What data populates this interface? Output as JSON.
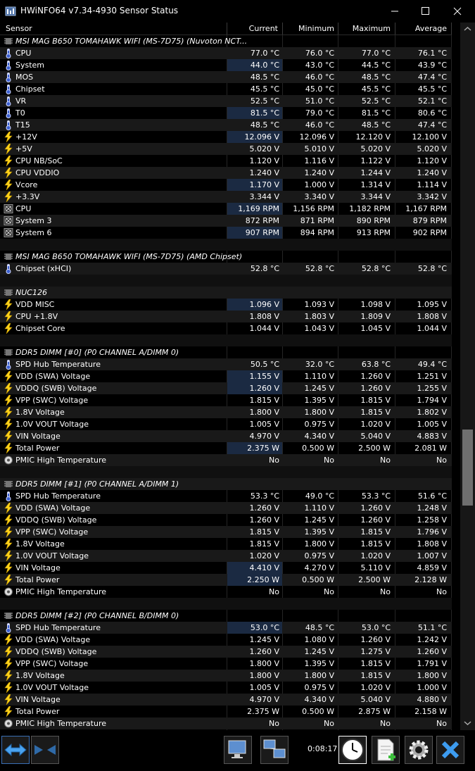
{
  "window": {
    "title": "HWiNFO64 v7.34-4930 Sensor Status"
  },
  "header": {
    "sensor": "Sensor",
    "current": "Current",
    "minimum": "Minimum",
    "maximum": "Maximum",
    "average": "Average"
  },
  "footer": {
    "timer": "0:08:17"
  },
  "rows": [
    {
      "type": "group",
      "name": "MSI MAG B650 TOMAHAWK WIFI (MS-7D75) (Nuvoton NCT..."
    },
    {
      "type": "s",
      "icon": "temp",
      "name": "CPU",
      "cur": "77.0 °C",
      "min": "76.0 °C",
      "max": "77.0 °C",
      "avg": "76.1 °C"
    },
    {
      "type": "s",
      "icon": "temp",
      "name": "System",
      "cur": "44.0 °C",
      "min": "43.0 °C",
      "max": "44.5 °C",
      "avg": "43.9 °C",
      "hl": true
    },
    {
      "type": "s",
      "icon": "temp",
      "name": "MOS",
      "cur": "48.5 °C",
      "min": "46.0 °C",
      "max": "48.5 °C",
      "avg": "47.4 °C"
    },
    {
      "type": "s",
      "icon": "temp",
      "name": "Chipset",
      "cur": "45.5 °C",
      "min": "45.0 °C",
      "max": "45.5 °C",
      "avg": "45.5 °C"
    },
    {
      "type": "s",
      "icon": "temp",
      "name": "VR",
      "cur": "52.5 °C",
      "min": "51.0 °C",
      "max": "52.5 °C",
      "avg": "52.1 °C"
    },
    {
      "type": "s",
      "icon": "temp",
      "name": "T0",
      "cur": "81.5 °C",
      "min": "79.0 °C",
      "max": "81.5 °C",
      "avg": "80.6 °C",
      "hl": true
    },
    {
      "type": "s",
      "icon": "temp",
      "name": "T15",
      "cur": "48.5 °C",
      "min": "46.0 °C",
      "max": "48.5 °C",
      "avg": "47.4 °C"
    },
    {
      "type": "s",
      "icon": "volt",
      "name": "+12V",
      "cur": "12.096 V",
      "min": "12.096 V",
      "max": "12.120 V",
      "avg": "12.100 V",
      "hl": true
    },
    {
      "type": "s",
      "icon": "volt",
      "name": "+5V",
      "cur": "5.020 V",
      "min": "5.010 V",
      "max": "5.020 V",
      "avg": "5.020 V"
    },
    {
      "type": "s",
      "icon": "volt",
      "name": "CPU NB/SoC",
      "cur": "1.120 V",
      "min": "1.116 V",
      "max": "1.122 V",
      "avg": "1.120 V"
    },
    {
      "type": "s",
      "icon": "volt",
      "name": "CPU VDDIO",
      "cur": "1.240 V",
      "min": "1.240 V",
      "max": "1.244 V",
      "avg": "1.240 V"
    },
    {
      "type": "s",
      "icon": "volt",
      "name": "Vcore",
      "cur": "1.170 V",
      "min": "1.000 V",
      "max": "1.314 V",
      "avg": "1.114 V",
      "hl": true
    },
    {
      "type": "s",
      "icon": "volt",
      "name": "+3.3V",
      "cur": "3.344 V",
      "min": "3.340 V",
      "max": "3.344 V",
      "avg": "3.342 V"
    },
    {
      "type": "s",
      "icon": "fan",
      "name": "CPU",
      "cur": "1,169 RPM",
      "min": "1,156 RPM",
      "max": "1,182 RPM",
      "avg": "1,167 RPM",
      "hl": true
    },
    {
      "type": "s",
      "icon": "fan",
      "name": "System 3",
      "cur": "872 RPM",
      "min": "871 RPM",
      "max": "890 RPM",
      "avg": "879 RPM"
    },
    {
      "type": "s",
      "icon": "fan",
      "name": "System 6",
      "cur": "907 RPM",
      "min": "894 RPM",
      "max": "913 RPM",
      "avg": "902 RPM",
      "hl": true
    },
    {
      "type": "blank"
    },
    {
      "type": "group",
      "name": "MSI MAG B650 TOMAHAWK WIFI (MS-7D75) (AMD Chipset)"
    },
    {
      "type": "s",
      "icon": "temp",
      "name": "Chipset (xHCI)",
      "cur": "52.8 °C",
      "min": "52.8 °C",
      "max": "52.8 °C",
      "avg": "52.8 °C"
    },
    {
      "type": "blank"
    },
    {
      "type": "group",
      "name": "NUC126"
    },
    {
      "type": "s",
      "icon": "volt",
      "name": "VDD MISC",
      "cur": "1.096 V",
      "min": "1.093 V",
      "max": "1.098 V",
      "avg": "1.095 V",
      "hl": true
    },
    {
      "type": "s",
      "icon": "volt",
      "name": "CPU +1.8V",
      "cur": "1.808 V",
      "min": "1.803 V",
      "max": "1.809 V",
      "avg": "1.808 V"
    },
    {
      "type": "s",
      "icon": "volt",
      "name": "Chipset Core",
      "cur": "1.044 V",
      "min": "1.043 V",
      "max": "1.045 V",
      "avg": "1.044 V"
    },
    {
      "type": "blank"
    },
    {
      "type": "group",
      "name": "DDR5 DIMM [#0] (P0 CHANNEL A/DIMM 0)"
    },
    {
      "type": "s",
      "icon": "temp",
      "name": "SPD Hub Temperature",
      "cur": "50.5 °C",
      "min": "32.0 °C",
      "max": "63.8 °C",
      "avg": "49.4 °C"
    },
    {
      "type": "s",
      "icon": "volt",
      "name": "VDD (SWA) Voltage",
      "cur": "1.155 V",
      "min": "1.110 V",
      "max": "1.260 V",
      "avg": "1.251 V",
      "hl": true
    },
    {
      "type": "s",
      "icon": "volt",
      "name": "VDDQ (SWB) Voltage",
      "cur": "1.260 V",
      "min": "1.245 V",
      "max": "1.260 V",
      "avg": "1.255 V",
      "hl": true
    },
    {
      "type": "s",
      "icon": "volt",
      "name": "VPP (SWC) Voltage",
      "cur": "1.815 V",
      "min": "1.395 V",
      "max": "1.815 V",
      "avg": "1.794 V"
    },
    {
      "type": "s",
      "icon": "volt",
      "name": "1.8V Voltage",
      "cur": "1.800 V",
      "min": "1.800 V",
      "max": "1.815 V",
      "avg": "1.802 V"
    },
    {
      "type": "s",
      "icon": "volt",
      "name": "1.0V VOUT Voltage",
      "cur": "1.005 V",
      "min": "0.975 V",
      "max": "1.020 V",
      "avg": "1.005 V"
    },
    {
      "type": "s",
      "icon": "volt",
      "name": "VIN Voltage",
      "cur": "4.970 V",
      "min": "4.340 V",
      "max": "5.040 V",
      "avg": "4.883 V"
    },
    {
      "type": "s",
      "icon": "volt",
      "name": "Total Power",
      "cur": "2.375 W",
      "min": "0.500 W",
      "max": "2.500 W",
      "avg": "2.081 W",
      "hl": true
    },
    {
      "type": "s",
      "icon": "yesno",
      "name": "PMIC High Temperature",
      "cur": "No",
      "min": "No",
      "max": "No",
      "avg": "No"
    },
    {
      "type": "blank"
    },
    {
      "type": "group",
      "name": "DDR5 DIMM [#1] (P0 CHANNEL A/DIMM 1)"
    },
    {
      "type": "s",
      "icon": "temp",
      "name": "SPD Hub Temperature",
      "cur": "53.3 °C",
      "min": "49.0 °C",
      "max": "53.3 °C",
      "avg": "51.6 °C"
    },
    {
      "type": "s",
      "icon": "volt",
      "name": "VDD (SWA) Voltage",
      "cur": "1.260 V",
      "min": "1.110 V",
      "max": "1.260 V",
      "avg": "1.248 V"
    },
    {
      "type": "s",
      "icon": "volt",
      "name": "VDDQ (SWB) Voltage",
      "cur": "1.260 V",
      "min": "1.245 V",
      "max": "1.260 V",
      "avg": "1.258 V"
    },
    {
      "type": "s",
      "icon": "volt",
      "name": "VPP (SWC) Voltage",
      "cur": "1.815 V",
      "min": "1.395 V",
      "max": "1.815 V",
      "avg": "1.796 V"
    },
    {
      "type": "s",
      "icon": "volt",
      "name": "1.8V Voltage",
      "cur": "1.815 V",
      "min": "1.800 V",
      "max": "1.815 V",
      "avg": "1.808 V"
    },
    {
      "type": "s",
      "icon": "volt",
      "name": "1.0V VOUT Voltage",
      "cur": "1.020 V",
      "min": "0.975 V",
      "max": "1.020 V",
      "avg": "1.007 V"
    },
    {
      "type": "s",
      "icon": "volt",
      "name": "VIN Voltage",
      "cur": "4.410 V",
      "min": "4.270 V",
      "max": "5.110 V",
      "avg": "4.859 V",
      "hl": true
    },
    {
      "type": "s",
      "icon": "volt",
      "name": "Total Power",
      "cur": "2.250 W",
      "min": "0.500 W",
      "max": "2.500 W",
      "avg": "2.128 W",
      "hl": true
    },
    {
      "type": "s",
      "icon": "yesno",
      "name": "PMIC High Temperature",
      "cur": "No",
      "min": "No",
      "max": "No",
      "avg": "No"
    },
    {
      "type": "blank"
    },
    {
      "type": "group",
      "name": "DDR5 DIMM [#2] (P0 CHANNEL B/DIMM 0)"
    },
    {
      "type": "s",
      "icon": "temp",
      "name": "SPD Hub Temperature",
      "cur": "53.0 °C",
      "min": "48.5 °C",
      "max": "53.0 °C",
      "avg": "51.1 °C",
      "hl": true
    },
    {
      "type": "s",
      "icon": "volt",
      "name": "VDD (SWA) Voltage",
      "cur": "1.245 V",
      "min": "1.080 V",
      "max": "1.260 V",
      "avg": "1.242 V"
    },
    {
      "type": "s",
      "icon": "volt",
      "name": "VDDQ (SWB) Voltage",
      "cur": "1.260 V",
      "min": "1.245 V",
      "max": "1.275 V",
      "avg": "1.260 V"
    },
    {
      "type": "s",
      "icon": "volt",
      "name": "VPP (SWC) Voltage",
      "cur": "1.800 V",
      "min": "1.395 V",
      "max": "1.815 V",
      "avg": "1.791 V"
    },
    {
      "type": "s",
      "icon": "volt",
      "name": "1.8V Voltage",
      "cur": "1.800 V",
      "min": "1.800 V",
      "max": "1.815 V",
      "avg": "1.800 V"
    },
    {
      "type": "s",
      "icon": "volt",
      "name": "1.0V VOUT Voltage",
      "cur": "1.005 V",
      "min": "0.975 V",
      "max": "1.020 V",
      "avg": "1.000 V"
    },
    {
      "type": "s",
      "icon": "volt",
      "name": "VIN Voltage",
      "cur": "4.970 V",
      "min": "4.340 V",
      "max": "5.040 V",
      "avg": "4.880 V"
    },
    {
      "type": "s",
      "icon": "volt",
      "name": "Total Power",
      "cur": "2.375 W",
      "min": "0.500 W",
      "max": "2.875 W",
      "avg": "2.158 W"
    },
    {
      "type": "s",
      "icon": "yesno",
      "name": "PMIC High Temperature",
      "cur": "No",
      "min": "No",
      "max": "No",
      "avg": "No"
    }
  ]
}
